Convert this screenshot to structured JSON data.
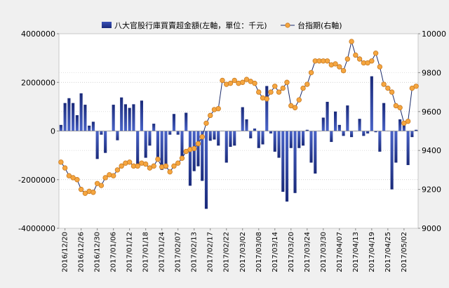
{
  "chart_data": {
    "type": "bar+line",
    "title": "",
    "legend": {
      "placement": "top",
      "entries": [
        "八大官股行庫買賣超金額(左軸，單位：千元)",
        "台指期(右軸)"
      ]
    },
    "x_tick_labels": [
      "2016/12/20",
      "2016/12/26",
      "2016/12/30",
      "2017/01/06",
      "2017/01/12",
      "2017/01/18",
      "2017/01/24",
      "2017/02/07",
      "2017/02/13",
      "2017/02/17",
      "2017/02/22",
      "2017/03/02",
      "2017/03/08",
      "2017/03/14",
      "2017/03/20",
      "2017/03/24",
      "2017/03/30",
      "2017/04/07",
      "2017/04/13",
      "2017/04/19",
      "2017/04/25",
      "2017/05/02"
    ],
    "y_left": {
      "ticks": [
        -4000000,
        -2000000,
        0,
        2000000,
        4000000
      ],
      "tick_labels": [
        "-4000000",
        "-2000000",
        "0",
        "2000000",
        "4000000"
      ],
      "range": [
        -4000000,
        4000000
      ]
    },
    "y_right": {
      "ticks": [
        9000,
        9200,
        9400,
        9600,
        9800,
        10000
      ],
      "tick_labels": [
        "9000",
        "9200",
        "9400",
        "9600",
        "9800",
        "10000"
      ],
      "range": [
        9000,
        10000
      ]
    },
    "grid": {
      "horizontal_dotted": true
    },
    "colors": {
      "bar_top": "#1a2a7a",
      "bar_mid": "#3a52b8",
      "line": "#1a2a6a",
      "marker_fill": "#f5a640",
      "marker_stroke": "#c97a20"
    },
    "series": [
      {
        "name": "八大官股行庫買賣超金額(左軸，單位：千元)",
        "axis": "left",
        "type": "bar",
        "values": [
          250000,
          1150000,
          1350000,
          1150000,
          650000,
          1550000,
          1080000,
          220000,
          380000,
          -1150000,
          -150000,
          -900000,
          0,
          1080000,
          -380000,
          1380000,
          1100000,
          950000,
          1100000,
          -1400000,
          1250000,
          -1100000,
          -600000,
          300000,
          -1250000,
          -1600000,
          -1550000,
          -150000,
          700000,
          -150000,
          -1100000,
          750000,
          -2250000,
          -1650000,
          -1450000,
          -2050000,
          -3200000,
          -400000,
          -350000,
          -600000,
          0,
          -1300000,
          -650000,
          -600000,
          0,
          980000,
          480000,
          -300000,
          100000,
          -700000,
          -550000,
          1850000,
          -100000,
          -850000,
          -1100000,
          -2500000,
          -2900000,
          -700000,
          -2550000,
          -700000,
          -600000,
          50000,
          -1300000,
          -1750000,
          0,
          550000,
          1200000,
          -450000,
          800000,
          250000,
          -200000,
          1050000,
          -250000,
          0,
          500000,
          -200000,
          -100000,
          2250000,
          -50000,
          -850000,
          1150000,
          0,
          -2400000,
          -1300000,
          480000,
          250000,
          -1400000,
          -250000,
          50000
        ],
        "values_note": "approximate, one per trading day"
      },
      {
        "name": "台指期(右軸)",
        "axis": "right",
        "type": "line",
        "values": [
          9340,
          9310,
          9270,
          9260,
          9250,
          9200,
          9180,
          9190,
          9185,
          9230,
          9220,
          9260,
          9275,
          9270,
          9300,
          9320,
          9335,
          9340,
          9320,
          9320,
          9335,
          9330,
          9310,
          9320,
          9355,
          9315,
          9320,
          9290,
          9320,
          9335,
          9360,
          9395,
          9405,
          9410,
          9435,
          9470,
          9540,
          9580,
          9610,
          9615,
          9760,
          9740,
          9745,
          9760,
          9745,
          9750,
          9765,
          9755,
          9745,
          9700,
          9670,
          9665,
          9700,
          9730,
          9700,
          9720,
          9750,
          9630,
          9620,
          9660,
          9720,
          9740,
          9800,
          9860,
          9860,
          9860,
          9860,
          9840,
          9845,
          9830,
          9810,
          9870,
          9960,
          9890,
          9870,
          9850,
          9850,
          9860,
          9900,
          9830,
          9740,
          9720,
          9700,
          9630,
          9620,
          9540,
          9550,
          9720,
          9730
        ],
        "values_note": "approximate"
      }
    ]
  }
}
